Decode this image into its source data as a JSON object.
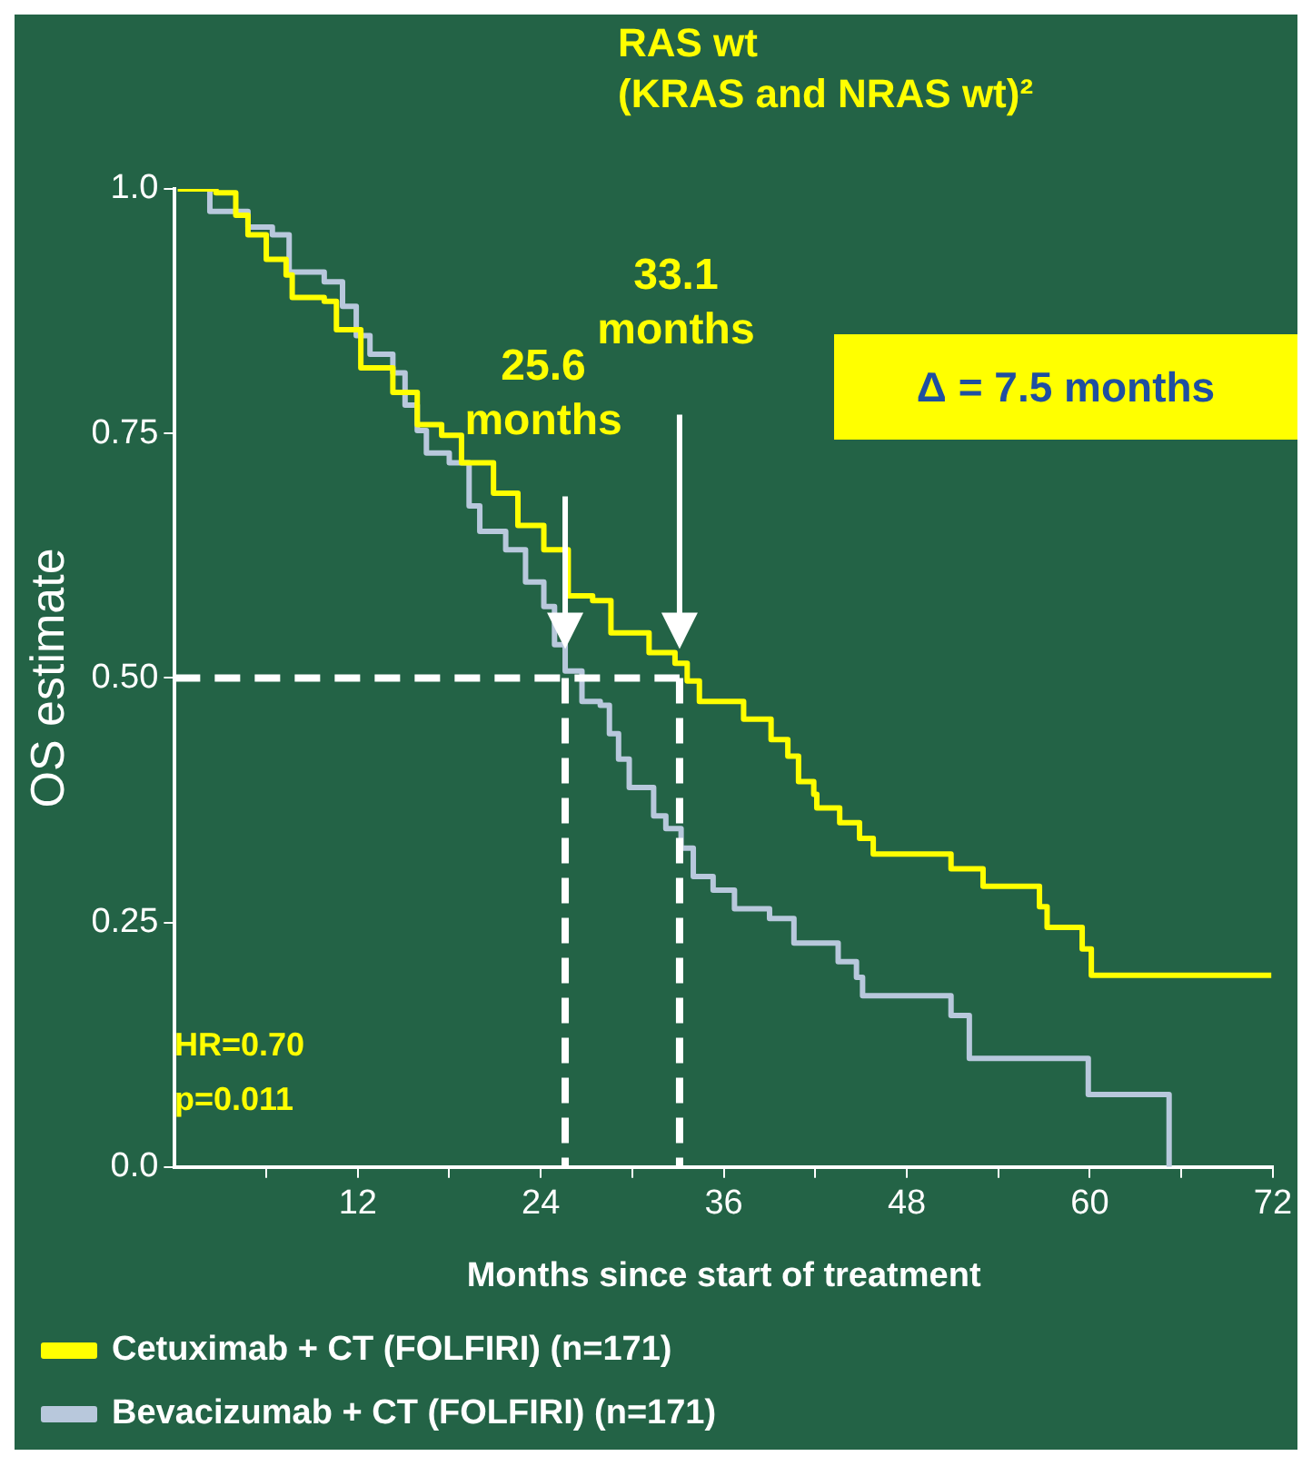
{
  "chart_data": {
    "type": "step",
    "title": "RAS wt",
    "subtitle": "(KRAS and NRAS wt)²",
    "xlabel": "Months since start of treatment",
    "ylabel": "OS estimate",
    "xlim": [
      0,
      72
    ],
    "xticks": [
      {
        "value": 6,
        "label": null
      },
      12,
      {
        "value": 18,
        "label": null
      },
      24,
      {
        "value": 30,
        "label": null
      },
      36,
      {
        "value": 42,
        "label": null
      },
      48,
      {
        "value": 54,
        "label": null
      },
      60,
      {
        "value": 66,
        "label": null
      },
      72
    ],
    "ylim": [
      0,
      1
    ],
    "yticks": [
      {
        "value": 0,
        "label": "0.0"
      },
      0.25,
      {
        "value": 0.5,
        "label": "0.50"
      },
      0.75,
      {
        "value": 1,
        "label": "1.0"
      }
    ],
    "grid": false,
    "legend": "bottom",
    "marker": "none",
    "line_style": "solid",
    "series": [
      {
        "name": "Cetuximab + CT (FOLFIRI) (n=171)",
        "color": "#ffff00",
        "x": [
          0.2,
          2.7,
          4,
          4.8,
          6,
          7.3,
          7.7,
          9.8,
          10.6,
          12.2,
          14.3,
          15.9,
          17.5,
          18.8,
          20.9,
          22.5,
          24.2,
          25.8,
          27.4,
          28.6,
          31.1,
          32.8,
          33.6,
          34.4,
          37.3,
          39.1,
          40.2,
          40.9,
          41.9,
          42.1,
          43.6,
          44.9,
          45.8,
          50.9,
          53,
          56.7,
          57.2,
          59.5,
          60.1,
          71.9
        ],
        "values": [
          1.0,
          0.996,
          0.973,
          0.953,
          0.928,
          0.912,
          0.889,
          0.885,
          0.856,
          0.817,
          0.792,
          0.759,
          0.748,
          0.72,
          0.689,
          0.656,
          0.631,
          0.584,
          0.579,
          0.546,
          0.526,
          0.515,
          0.497,
          0.476,
          0.458,
          0.437,
          0.42,
          0.394,
          0.381,
          0.367,
          0.352,
          0.336,
          0.32,
          0.305,
          0.287,
          0.266,
          0.245,
          0.223,
          0.196,
          0.196
        ]
      },
      {
        "name": "Bevacizumab + CT (FOLFIRI) (n=171)",
        "color": "#b8c8dc",
        "x": [
          0.2,
          2.3,
          4.8,
          6.4,
          7.5,
          9.8,
          11,
          11.9,
          12.8,
          14.3,
          15.1,
          15.9,
          16.5,
          18,
          19.3,
          20,
          21.7,
          23,
          24.2,
          24.9,
          25.6,
          26.7,
          27.9,
          28.5,
          29.1,
          29.8,
          31.4,
          32.2,
          33.2,
          34,
          35.3,
          36.7,
          39,
          40.6,
          43.5,
          44.7,
          45.1,
          50.9,
          52.1,
          59.9,
          65.2
        ],
        "values": [
          1.0,
          0.977,
          0.961,
          0.953,
          0.915,
          0.905,
          0.88,
          0.85,
          0.831,
          0.812,
          0.779,
          0.753,
          0.73,
          0.72,
          0.676,
          0.65,
          0.631,
          0.598,
          0.573,
          0.534,
          0.507,
          0.476,
          0.472,
          0.443,
          0.417,
          0.388,
          0.359,
          0.346,
          0.326,
          0.297,
          0.283,
          0.264,
          0.254,
          0.229,
          0.21,
          0.194,
          0.175,
          0.155,
          0.111,
          0.074,
          0.0
        ]
      }
    ],
    "ref_lines": [
      {
        "axis": "y",
        "value": 0.5,
        "color": "#ffffff",
        "line_style": "dashed"
      },
      {
        "axis": "x",
        "value": 25.6,
        "color": "#ffffff",
        "line_style": "dashed"
      },
      {
        "axis": "x",
        "value": 33.1,
        "color": "#ffffff",
        "line_style": "dashed"
      }
    ],
    "annotations": [
      "25.6 months",
      "33.1 months",
      "Δ = 7.5 months",
      "HR=0.70",
      "p=0.011"
    ]
  }
}
